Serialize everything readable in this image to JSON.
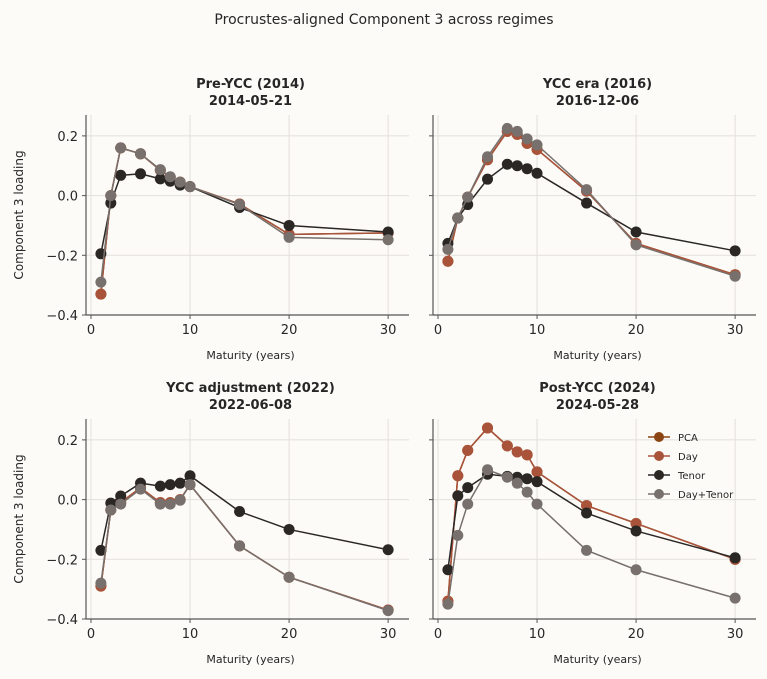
{
  "chart_data": {
    "type": "line",
    "title": "Procrustes-aligned Component 3 across regimes",
    "legend": {
      "placement": "upper-right of last panel",
      "entries": [
        {
          "name": "PCA",
          "color": "#8b4513"
        },
        {
          "name": "Day",
          "color": "#a9533a"
        },
        {
          "name": "Tenor",
          "color": "#2a2725"
        },
        {
          "name": "Day+Tenor",
          "color": "#77706c"
        }
      ]
    },
    "xlabel": "Maturity (years)",
    "ylabel": "Component 3 loading",
    "xlim": [
      -0.5,
      31.5
    ],
    "ylim": [
      -0.4,
      0.27
    ],
    "xticks": [
      0,
      10,
      20,
      30
    ],
    "yticks": [
      0.2,
      0.0,
      -0.2,
      -0.4
    ],
    "ytick_labels": [
      "0.2",
      "0.0",
      "−0.2",
      "−0.4"
    ],
    "grid": true,
    "x": [
      1,
      2,
      3,
      5,
      7,
      8,
      9,
      10,
      15,
      20,
      30
    ],
    "panels": [
      {
        "title": "Pre-YCC (2014)",
        "subtitle": "2014-05-21",
        "series": [
          {
            "name": "PCA",
            "values": [
              -0.33,
              0.0,
              0.16,
              0.14,
              0.085,
              0.062,
              0.045,
              0.03,
              -0.028,
              -0.13,
              -0.125
            ]
          },
          {
            "name": "Day",
            "values": [
              -0.33,
              0.0,
              0.16,
              0.14,
              0.085,
              0.062,
              0.045,
              0.03,
              -0.028,
              -0.13,
              -0.125
            ]
          },
          {
            "name": "Tenor",
            "values": [
              -0.195,
              -0.025,
              0.068,
              0.073,
              0.056,
              0.048,
              0.035,
              0.03,
              -0.04,
              -0.1,
              -0.122
            ]
          },
          {
            "name": "Day+Tenor",
            "values": [
              -0.29,
              0.0,
              0.16,
              0.14,
              0.087,
              0.063,
              0.045,
              0.03,
              -0.03,
              -0.14,
              -0.148
            ]
          }
        ]
      },
      {
        "title": "YCC era (2016)",
        "subtitle": "2016-12-06",
        "series": [
          {
            "name": "PCA",
            "values": [
              -0.22,
              -0.075,
              -0.005,
              0.12,
              0.215,
              0.205,
              0.175,
              0.155,
              0.015,
              -0.16,
              -0.265
            ]
          },
          {
            "name": "Day",
            "values": [
              -0.22,
              -0.075,
              -0.005,
              0.12,
              0.215,
              0.205,
              0.175,
              0.155,
              0.015,
              -0.16,
              -0.265
            ]
          },
          {
            "name": "Tenor",
            "values": [
              -0.16,
              -0.075,
              -0.03,
              0.055,
              0.105,
              0.1,
              0.09,
              0.075,
              -0.025,
              -0.122,
              -0.185
            ]
          },
          {
            "name": "Day+Tenor",
            "values": [
              -0.18,
              -0.075,
              -0.005,
              0.13,
              0.225,
              0.215,
              0.19,
              0.17,
              0.02,
              -0.165,
              -0.27
            ]
          }
        ]
      },
      {
        "title": "YCC adjustment (2022)",
        "subtitle": "2022-06-08",
        "series": [
          {
            "name": "PCA",
            "values": [
              -0.29,
              -0.035,
              -0.01,
              0.04,
              -0.01,
              -0.01,
              0.0,
              0.05,
              -0.155,
              -0.26,
              -0.37
            ]
          },
          {
            "name": "Day",
            "values": [
              -0.29,
              -0.035,
              -0.01,
              0.04,
              -0.01,
              -0.01,
              0.0,
              0.05,
              -0.155,
              -0.26,
              -0.37
            ]
          },
          {
            "name": "Tenor",
            "values": [
              -0.17,
              -0.012,
              0.012,
              0.055,
              0.045,
              0.05,
              0.055,
              0.08,
              -0.04,
              -0.1,
              -0.168
            ]
          },
          {
            "name": "Day+Tenor",
            "values": [
              -0.28,
              -0.035,
              -0.015,
              0.035,
              -0.015,
              -0.015,
              -0.002,
              0.05,
              -0.155,
              -0.26,
              -0.372
            ]
          }
        ]
      },
      {
        "title": "Post-YCC (2024)",
        "subtitle": "2024-05-28",
        "series": [
          {
            "name": "PCA",
            "values": [
              -0.34,
              0.08,
              0.165,
              0.24,
              0.18,
              0.16,
              0.15,
              0.093,
              -0.02,
              -0.08,
              -0.2
            ]
          },
          {
            "name": "Day",
            "values": [
              -0.34,
              0.08,
              0.165,
              0.24,
              0.18,
              0.16,
              0.15,
              0.093,
              -0.02,
              -0.08,
              -0.2
            ]
          },
          {
            "name": "Tenor",
            "values": [
              -0.235,
              0.013,
              0.04,
              0.085,
              0.078,
              0.075,
              0.07,
              0.06,
              -0.045,
              -0.105,
              -0.195
            ]
          },
          {
            "name": "Day+Tenor",
            "values": [
              -0.35,
              -0.12,
              -0.015,
              0.1,
              0.075,
              0.055,
              0.025,
              -0.015,
              -0.17,
              -0.235,
              -0.33
            ]
          }
        ]
      }
    ]
  }
}
